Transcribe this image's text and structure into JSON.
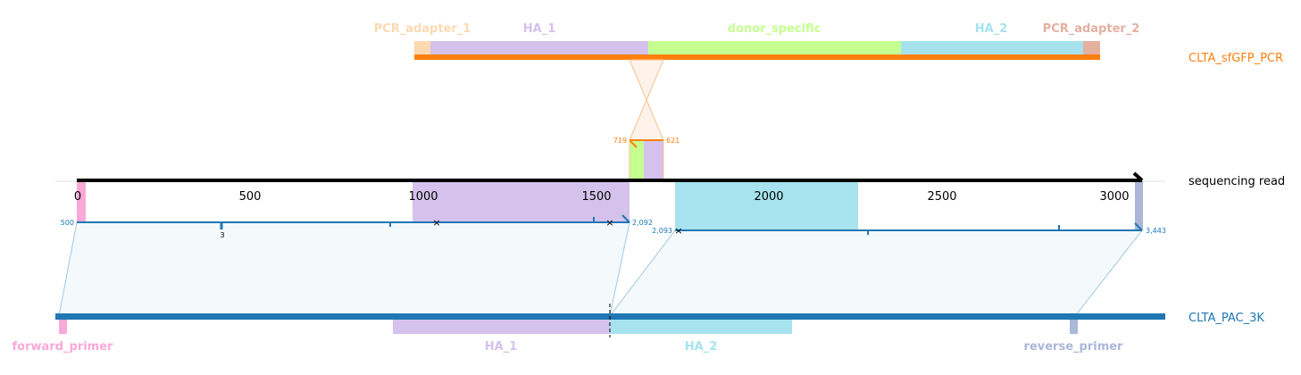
{
  "tracks": {
    "donor": {
      "name": "CLTA_sfGFP_PCR",
      "color": "#ff7f0e"
    },
    "read": {
      "name": "sequencing read",
      "color": "#000000"
    },
    "reference": {
      "name": "CLTA_PAC_3K",
      "color": "#1f77b4"
    }
  },
  "donor_features": [
    {
      "name": "PCR_adapter_1",
      "color": "#fdd9b0"
    },
    {
      "name": "HA_1",
      "color": "#d4c2ec"
    },
    {
      "name": "donor_specific",
      "color": "#c5ff8f"
    },
    {
      "name": "HA_2",
      "color": "#a6e3ee"
    },
    {
      "name": "PCR_adapter_2",
      "color": "#e4b0a0"
    }
  ],
  "reference_features": [
    {
      "name": "forward_primer",
      "color": "#f9a8d8"
    },
    {
      "name": "HA_1",
      "color": "#d4c2ec"
    },
    {
      "name": "HA_2",
      "color": "#a6e3ee"
    },
    {
      "name": "reverse_primer",
      "color": "#aab7d8"
    }
  ],
  "read_axis": {
    "ticks": [
      0,
      500,
      1000,
      1500,
      2000,
      2500,
      3000
    ],
    "tick_labels": [
      "0",
      "500",
      "1000",
      "1500",
      "2000",
      "2500",
      "3000"
    ]
  },
  "alignment_labels": {
    "left_start": "500",
    "left_end": "2,092",
    "right_start": "2,093",
    "right_end": "3,443",
    "indel": "3",
    "donor_start": "719",
    "donor_end": "621"
  }
}
